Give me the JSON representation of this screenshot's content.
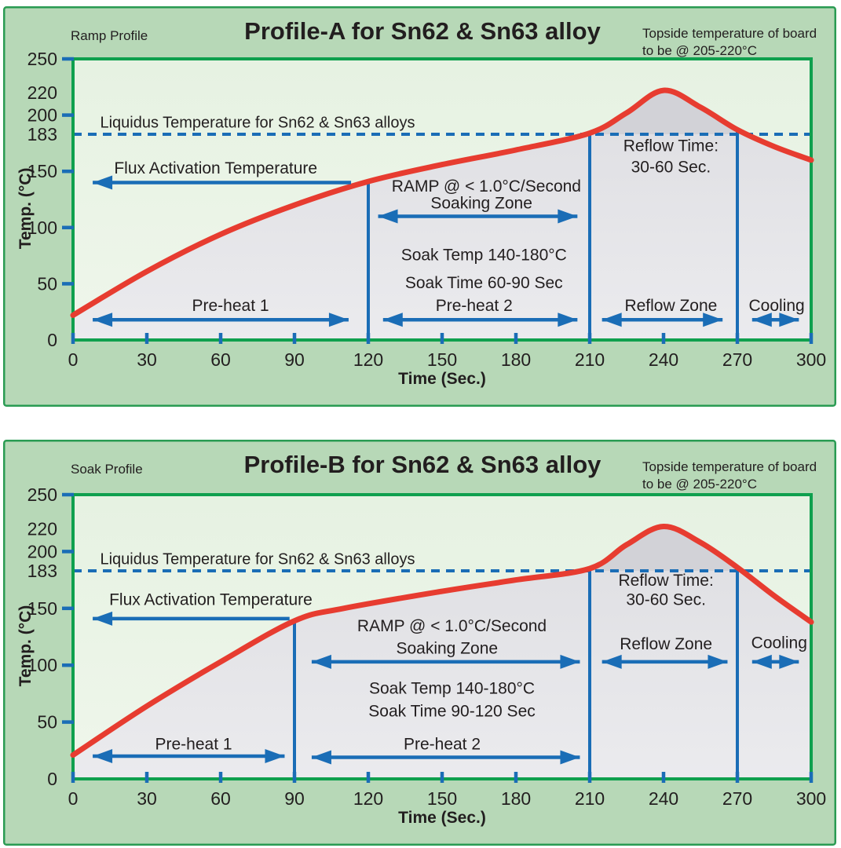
{
  "page": {
    "background": "#ffffff"
  },
  "colors": {
    "box_fill": "#b7d8b7",
    "box_border": "#2a9b53",
    "plot_fill_top": "#e6f2e2",
    "plot_fill_bottom": "#eff6eb",
    "plot_frame": "#0fa04e",
    "under_curve_fill_top": "#dedee2",
    "under_curve_fill_bottom": "#ebebee",
    "above_liquidus_fill": "#d2d2d7",
    "curve_red": "#e73c30",
    "blue": "#1a6db6",
    "title_blue": "#1277bd",
    "text_dark": "#221e1f"
  },
  "chart_data": [
    {
      "type": "line",
      "panel_label": "Ramp Profile",
      "title": "Profile-A for Sn62 & Sn63 alloy",
      "corner_note_lines": [
        "Topside temperature of board",
        "to be @ 205-220°C"
      ],
      "xlabel": "Time (Sec.)",
      "ylabel": "Temp. (°C)",
      "xlim": [
        0,
        300
      ],
      "ylim": [
        0,
        250
      ],
      "x_ticks": [
        0,
        30,
        60,
        90,
        120,
        150,
        180,
        210,
        240,
        270,
        300
      ],
      "y_ticks_marked": [
        250,
        200,
        150,
        100,
        50
      ],
      "y_tick_labels": [
        250,
        220,
        200,
        183,
        150,
        100,
        50,
        0
      ],
      "liquidus_temp": 183,
      "peak_c": 222,
      "series": [
        {
          "name": "board-temperature",
          "points_sec_c": [
            [
              0,
              22
            ],
            [
              30,
              61
            ],
            [
              60,
              94
            ],
            [
              90,
              120
            ],
            [
              120,
              141
            ],
            [
              150,
              156
            ],
            [
              180,
              169
            ],
            [
              210,
              184
            ],
            [
              225,
              202
            ],
            [
              240,
              222
            ],
            [
              255,
              207
            ],
            [
              270,
              187
            ],
            [
              285,
              172
            ],
            [
              300,
              160
            ]
          ]
        }
      ],
      "zone_boundaries": [
        {
          "sec": 120,
          "top_c": 141
        },
        {
          "sec": 210,
          "top_c": 184
        },
        {
          "sec": 270,
          "top_c": 187
        }
      ],
      "texts": [
        {
          "name": "liquidus-label",
          "text": "Liquidus Temperature for Sn62 & Sn63 alloys",
          "sec": 11,
          "c": 189,
          "anchor": "start",
          "size": 20
        },
        {
          "name": "flux-activation-label",
          "text": "Flux Activation Temperature",
          "sec": 58,
          "c": 148,
          "size": 21
        },
        {
          "name": "ramp-rate-label",
          "text": "RAMP @ < 1.0°C/Second",
          "sec": 168,
          "c": 132,
          "size": 21
        },
        {
          "name": "soaking-zone-label",
          "text": "Soaking Zone",
          "sec": 166,
          "c": 117,
          "size": 21
        },
        {
          "name": "soak-temp-label",
          "text": "Soak Temp 140-180°C",
          "sec": 167,
          "c": 71,
          "size": 21
        },
        {
          "name": "soak-time-label",
          "text": "Soak Time 60-90 Sec",
          "sec": 167,
          "c": 46,
          "size": 21
        },
        {
          "name": "preheat1-label",
          "text": "Pre-heat 1",
          "sec": 64,
          "c": 26,
          "size": 21
        },
        {
          "name": "preheat2-label",
          "text": "Pre-heat 2",
          "sec": 163,
          "c": 26,
          "size": 21
        },
        {
          "name": "reflow-time-label-1",
          "text": "Reflow Time:",
          "sec": 243,
          "c": 168,
          "size": 21
        },
        {
          "name": "reflow-time-label-2",
          "text": "30-60 Sec.",
          "sec": 243,
          "c": 149,
          "size": 21
        },
        {
          "name": "reflow-zone-label",
          "text": "Reflow Zone",
          "sec": 243,
          "c": 26,
          "size": 21
        },
        {
          "name": "cooling-label",
          "text": "Cooling",
          "sec": 286,
          "c": 26,
          "size": 21
        }
      ],
      "arrows": [
        {
          "name": "flux-activation-arrow",
          "type": "left",
          "from_sec": 113,
          "to_sec": 8,
          "c": 140
        },
        {
          "name": "soaking-zone-arrow",
          "type": "double",
          "from_sec": 124,
          "to_sec": 205,
          "c": 110
        },
        {
          "name": "preheat1-arrow",
          "type": "double",
          "from_sec": 8,
          "to_sec": 112,
          "c": 18
        },
        {
          "name": "preheat2-arrow",
          "type": "double",
          "from_sec": 126,
          "to_sec": 205,
          "c": 18
        },
        {
          "name": "reflow-zone-arrow",
          "type": "double",
          "from_sec": 215,
          "to_sec": 264,
          "c": 18
        },
        {
          "name": "cooling-arrow",
          "type": "double",
          "from_sec": 276,
          "to_sec": 295,
          "c": 18
        }
      ]
    },
    {
      "type": "line",
      "panel_label": "Soak Profile",
      "title": "Profile-B for Sn62 & Sn63 alloy",
      "corner_note_lines": [
        "Topside temperature of board",
        "to be @ 205-220°C"
      ],
      "xlabel": "Time (Sec.)",
      "ylabel": "Temp. (°C)",
      "xlim": [
        0,
        300
      ],
      "ylim": [
        0,
        250
      ],
      "x_ticks": [
        0,
        30,
        60,
        90,
        120,
        150,
        180,
        210,
        240,
        270,
        300
      ],
      "y_ticks_marked": [
        250,
        200,
        150,
        100,
        50
      ],
      "y_tick_labels": [
        250,
        220,
        200,
        183,
        150,
        100,
        50,
        0
      ],
      "liquidus_temp": 183,
      "peak_c": 222,
      "series": [
        {
          "name": "board-temperature",
          "points_sec_c": [
            [
              0,
              21
            ],
            [
              30,
              64
            ],
            [
              60,
              103
            ],
            [
              90,
              139
            ],
            [
              110,
              150
            ],
            [
              150,
              165
            ],
            [
              180,
              175
            ],
            [
              210,
              185
            ],
            [
              225,
              206
            ],
            [
              240,
              222
            ],
            [
              255,
              208
            ],
            [
              270,
              186
            ],
            [
              285,
              161
            ],
            [
              300,
              138
            ]
          ]
        }
      ],
      "zone_boundaries": [
        {
          "sec": 90,
          "top_c": 140
        },
        {
          "sec": 210,
          "top_c": 185
        },
        {
          "sec": 270,
          "top_c": 186
        }
      ],
      "texts": [
        {
          "name": "liquidus-label",
          "text": "Liquidus Temperature for Sn62 & Sn63 alloys",
          "sec": 11,
          "c": 189,
          "anchor": "start",
          "size": 20
        },
        {
          "name": "flux-activation-label",
          "text": "Flux Activation Temperature",
          "sec": 56,
          "c": 153,
          "size": 21
        },
        {
          "name": "ramp-rate-label",
          "text": "RAMP @ < 1.0°C/Second",
          "sec": 154,
          "c": 130,
          "size": 21
        },
        {
          "name": "soaking-zone-label",
          "text": "Soaking Zone",
          "sec": 152,
          "c": 110,
          "size": 21
        },
        {
          "name": "soak-temp-label",
          "text": "Soak Temp 140-180°C",
          "sec": 154,
          "c": 75,
          "size": 21
        },
        {
          "name": "soak-time-label",
          "text": "Soak Time 90-120 Sec",
          "sec": 154,
          "c": 55,
          "size": 21
        },
        {
          "name": "preheat1-label",
          "text": "Pre-heat 1",
          "sec": 49,
          "c": 26,
          "size": 21
        },
        {
          "name": "preheat2-label",
          "text": "Pre-heat 2",
          "sec": 150,
          "c": 26,
          "size": 21
        },
        {
          "name": "reflow-time-label-1",
          "text": "Reflow Time:",
          "sec": 241,
          "c": 170,
          "size": 21
        },
        {
          "name": "reflow-time-label-2",
          "text": "30-60 Sec.",
          "sec": 241,
          "c": 153,
          "size": 21
        },
        {
          "name": "reflow-zone-label",
          "text": "Reflow Zone",
          "sec": 241,
          "c": 114,
          "size": 21
        },
        {
          "name": "cooling-label",
          "text": "Cooling",
          "sec": 287,
          "c": 115,
          "size": 21
        }
      ],
      "arrows": [
        {
          "name": "flux-activation-arrow",
          "type": "left",
          "from_sec": 88,
          "to_sec": 8,
          "c": 141
        },
        {
          "name": "soaking-zone-arrow",
          "type": "double",
          "from_sec": 97,
          "to_sec": 206,
          "c": 103
        },
        {
          "name": "preheat1-arrow",
          "type": "double",
          "from_sec": 8,
          "to_sec": 86,
          "c": 20
        },
        {
          "name": "preheat2-arrow",
          "type": "double",
          "from_sec": 97,
          "to_sec": 206,
          "c": 19
        },
        {
          "name": "reflow-zone-arrow",
          "type": "double",
          "from_sec": 215,
          "to_sec": 266,
          "c": 103
        },
        {
          "name": "cooling-arrow",
          "type": "double",
          "from_sec": 276,
          "to_sec": 295,
          "c": 103
        }
      ]
    }
  ]
}
